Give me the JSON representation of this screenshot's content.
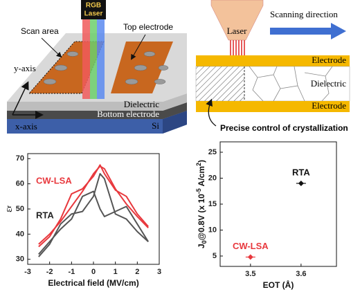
{
  "device_diagram": {
    "laser_label": [
      "RGB",
      "Laser"
    ],
    "scan_area": "Scan area",
    "top_electrode": "Top electrode",
    "y_axis": "y-axis",
    "dielectric": "Dielectric",
    "bottom_electrode": "Bottom electrode",
    "x_axis": "x-axis",
    "substrate": "Si"
  },
  "scan_diagram": {
    "laser": "Laser",
    "scanning_direction": "Scanning direction",
    "top_electrode": "Electrode",
    "dielectric": "Dielectric",
    "bottom_electrode": "Electrode",
    "caption": "Precise control of crystallization"
  },
  "chart_data": [
    {
      "type": "line",
      "ylabel_parts": [
        "ε",
        "r"
      ],
      "xlabel": "Electrical field (MV/cm)",
      "xlim": [
        -3,
        3
      ],
      "xticks": [
        -3,
        -2,
        -1,
        0,
        1,
        2,
        3
      ],
      "ylim": [
        28,
        72
      ],
      "yticks": [
        30,
        40,
        50,
        60,
        70
      ],
      "annotations": [
        {
          "text": "CW-LSA",
          "color": "#e8383d"
        },
        {
          "text": "RTA",
          "color": "#222222"
        }
      ],
      "x": [
        -2.5,
        -2,
        -1.5,
        -1,
        -0.5,
        0,
        0.3,
        0.5,
        1,
        1.5,
        2,
        2.5
      ],
      "series": [
        {
          "color": "#e8383d",
          "values": [
            35,
            39,
            46,
            56,
            58,
            63,
            67.5,
            64,
            57.5,
            55,
            48,
            43
          ]
        },
        {
          "color": "#e8383d",
          "values": [
            36,
            40,
            45,
            51,
            57,
            64,
            67,
            66,
            58,
            52,
            47,
            42.5
          ]
        },
        {
          "color": "#555555",
          "values": [
            32,
            37,
            42,
            46,
            55,
            57,
            50,
            47,
            49,
            51,
            44,
            37
          ]
        },
        {
          "color": "#555555",
          "values": [
            31,
            36,
            44,
            48,
            49,
            55,
            64,
            62,
            48,
            46,
            41,
            37
          ]
        }
      ]
    },
    {
      "type": "scatter",
      "ylabel_parts": [
        "J",
        "0",
        "@0.8V (x 10",
        "-5",
        " A/cm",
        "2",
        ")"
      ],
      "xlabel": "EOT (Å)",
      "xlim": [
        3.44,
        3.67
      ],
      "xticks": [
        3.5,
        3.6
      ],
      "ylim": [
        3,
        27
      ],
      "yticks": [
        5,
        10,
        15,
        20,
        25
      ],
      "series": [
        {
          "name": "CW-LSA",
          "color": "#e8383d",
          "x": [
            3.5
          ],
          "values": [
            4.8
          ]
        },
        {
          "name": "RTA",
          "color": "#111111",
          "x": [
            3.6
          ],
          "values": [
            19
          ]
        }
      ]
    }
  ]
}
